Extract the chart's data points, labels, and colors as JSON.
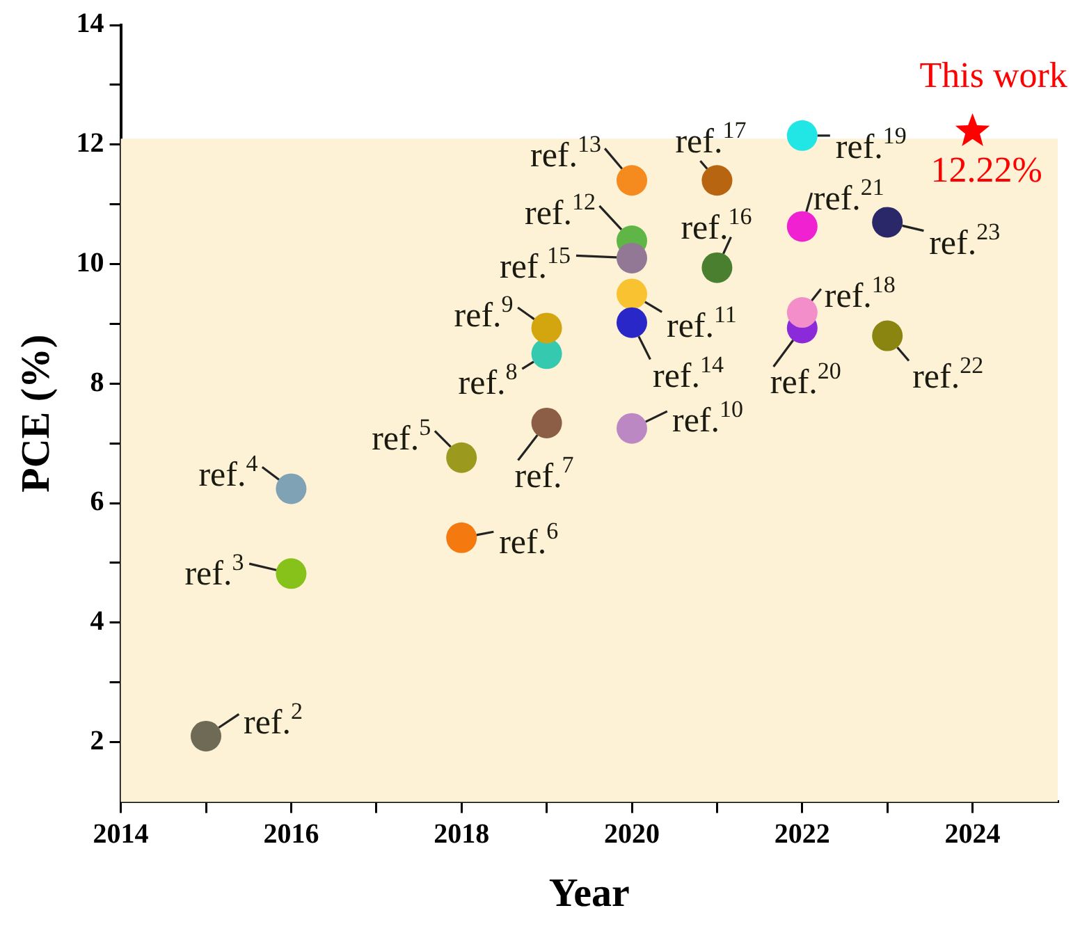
{
  "chart_data": {
    "type": "scatter",
    "xlabel": "Year",
    "ylabel": "PCE (%)",
    "xlim": [
      2014,
      2025
    ],
    "xticks": [
      2014,
      {
        "value": 2015,
        "label": null
      },
      2016,
      {
        "value": 2017,
        "label": null
      },
      2018,
      {
        "value": 2019,
        "label": null
      },
      2020,
      {
        "value": 2021,
        "label": null
      },
      2022,
      {
        "value": 2023,
        "label": null
      },
      2024
    ],
    "ylim": [
      1,
      14
    ],
    "yticks": [
      2,
      {
        "value": 3,
        "label": null
      },
      4,
      {
        "value": 5,
        "label": null
      },
      6,
      {
        "value": 7,
        "label": null
      },
      8,
      {
        "value": 9,
        "label": null
      },
      10,
      {
        "value": 11,
        "label": null
      },
      12,
      {
        "value": 13,
        "label": null
      },
      14
    ],
    "bands": [
      {
        "axis": "y",
        "from": 1,
        "to": 12.1,
        "color": "#fdf1d6"
      }
    ],
    "series": [
      {
        "marker": "circle",
        "x": [
          2015,
          2016,
          2016,
          2018,
          2018,
          2019,
          2019,
          2019,
          2020,
          2020,
          2020,
          2020,
          2020,
          2020,
          2021,
          2021,
          2022,
          2022,
          2022,
          2022,
          2023,
          2023
        ],
        "values": [
          2.1,
          4.82,
          6.24,
          6.76,
          5.42,
          7.34,
          8.5,
          8.93,
          7.25,
          9.5,
          10.39,
          11.4,
          9.02,
          10.1,
          9.94,
          11.4,
          8.93,
          9.19,
          12.15,
          10.63,
          8.8,
          10.7
        ],
        "colors": [
          "#6e6a55",
          "#86c21a",
          "#7fa3b5",
          "#9c9a1e",
          "#f47a10",
          "#8c5e45",
          "#35c9b0",
          "#d3a50f",
          "#bb88c3",
          "#f8c230",
          "#5fb545",
          "#f58a1e",
          "#2a27c8",
          "#927895",
          "#4a7f30",
          "#b86512",
          "#8a2ad8",
          "#f38ecb",
          "#22e6e6",
          "#f021d0",
          "#8a8510",
          "#2a2868"
        ]
      },
      {
        "name": "This work",
        "marker": "star",
        "color": "#ff0000",
        "x": [
          2024
        ],
        "values": [
          12.22
        ],
        "value_labels": [
          "12.22%"
        ]
      }
    ],
    "annotations": [
      {
        "text": "ref.$^{2}$",
        "x": 2015,
        "y": 2.1
      },
      {
        "text": "ref.$^{3}$",
        "x": 2016,
        "y": 4.82
      },
      {
        "text": "ref.$^{4}$",
        "x": 2016,
        "y": 6.24
      },
      {
        "text": "ref.$^{5}$",
        "x": 2018,
        "y": 6.76
      },
      {
        "text": "ref.$^{6}$",
        "x": 2018,
        "y": 5.42
      },
      {
        "text": "ref.$^{7}$",
        "x": 2019,
        "y": 7.34
      },
      {
        "text": "ref.$^{8}$",
        "x": 2019,
        "y": 8.5
      },
      {
        "text": "ref.$^{9}$",
        "x": 2019,
        "y": 8.93
      },
      {
        "text": "ref.$^{10}$",
        "x": 2020,
        "y": 7.25
      },
      {
        "text": "ref.$^{11}$",
        "x": 2020,
        "y": 9.5
      },
      {
        "text": "ref.$^{12}$",
        "x": 2020,
        "y": 10.39
      },
      {
        "text": "ref.$^{13}$",
        "x": 2020,
        "y": 11.4
      },
      {
        "text": "ref.$^{14}$",
        "x": 2020,
        "y": 9.02
      },
      {
        "text": "ref.$^{15}$",
        "x": 2020,
        "y": 10.1
      },
      {
        "text": "ref.$^{16}$",
        "x": 2021,
        "y": 9.94
      },
      {
        "text": "ref.$^{17}$",
        "x": 2021,
        "y": 11.4
      },
      {
        "text": "ref.$^{18}$",
        "x": 2022,
        "y": 9.19
      },
      {
        "text": "ref.$^{19}$",
        "x": 2022,
        "y": 12.15
      },
      {
        "text": "ref.$^{20}$",
        "x": 2022,
        "y": 8.93
      },
      {
        "text": "ref.$^{21}$",
        "x": 2022,
        "y": 10.63
      },
      {
        "text": "ref.$^{22}$",
        "x": 2023,
        "y": 8.8
      },
      {
        "text": "ref.$^{23}$",
        "x": 2023,
        "y": 10.7
      }
    ]
  }
}
